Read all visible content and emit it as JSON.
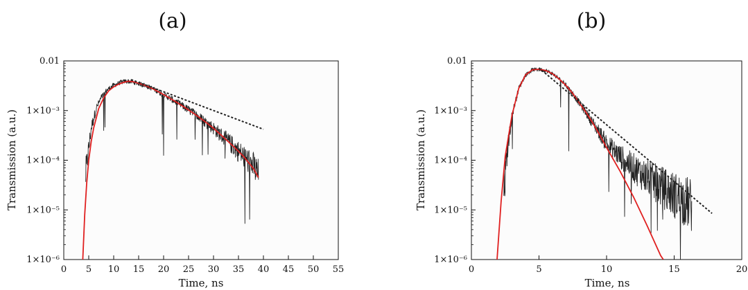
{
  "chart_data": [
    {
      "type": "line",
      "panel_label": "(a)",
      "xlabel": "Time, ns",
      "ylabel": "Transmission (a.u.)",
      "x_scale": "linear",
      "y_scale": "log",
      "xlim": [
        0,
        55
      ],
      "ylim": [
        1e-06,
        0.01
      ],
      "x_ticks": [
        0,
        5,
        10,
        15,
        20,
        25,
        30,
        35,
        40,
        45,
        50,
        55
      ],
      "x_tick_labels": [
        "0",
        "5",
        "10",
        "15",
        "20",
        "25",
        "30",
        "35",
        "40",
        "45",
        "50",
        "55"
      ],
      "y_ticks": [
        1e-06,
        1e-05,
        0.0001,
        0.001,
        0.01
      ],
      "y_tick_labels": [
        "1×10⁻⁶",
        "1×10⁻⁵",
        "1×10⁻⁴",
        "1×10⁻³",
        "0.01"
      ],
      "grid": false,
      "series": [
        {
          "kind": "measured",
          "color": "#222222",
          "style": "noisy",
          "x": [
            4.4,
            4.8,
            5.5,
            6.5,
            7.5,
            8.5,
            9.5,
            10.5,
            11.5,
            12.5,
            13.5,
            14.5,
            16,
            18,
            20,
            22,
            24,
            26,
            28,
            30,
            32,
            34,
            36,
            38,
            39
          ],
          "y": [
            5e-05,
            0.00012,
            0.00045,
            0.0011,
            0.0018,
            0.0025,
            0.003,
            0.0034,
            0.0037,
            0.0039,
            0.0038,
            0.0036,
            0.0033,
            0.0027,
            0.0021,
            0.0016,
            0.0012,
            0.00088,
            0.00063,
            0.00044,
            0.00029,
            0.00019,
            0.00012,
            7.5e-05,
            5e-05
          ]
        },
        {
          "kind": "fit",
          "color": "#e02020",
          "style": "solid",
          "x": [
            3.8,
            4.2,
            4.6,
            5,
            5.5,
            6,
            7,
            8,
            9,
            10,
            11,
            12,
            13,
            14,
            16,
            18,
            20,
            22,
            24,
            26,
            28,
            30,
            32,
            34,
            36,
            38,
            39
          ],
          "y": [
            1e-06,
            8e-06,
            3.5e-05,
            0.0001,
            0.00024,
            0.00045,
            0.0011,
            0.0018,
            0.0025,
            0.003,
            0.0034,
            0.0037,
            0.0039,
            0.0038,
            0.0033,
            0.0027,
            0.0021,
            0.0016,
            0.0012,
            0.00088,
            0.00063,
            0.00044,
            0.00029,
            0.00019,
            0.00012,
            6.8e-05,
            4.5e-05
          ]
        },
        {
          "kind": "exponential-tail",
          "color": "#222222",
          "style": "dashed",
          "x": [
            13.5,
            40
          ],
          "y": [
            0.0042,
            0.00042
          ]
        }
      ]
    },
    {
      "type": "line",
      "panel_label": "(b)",
      "xlabel": "Time, ns",
      "ylabel": "Transmission (a.u.)",
      "x_scale": "linear",
      "y_scale": "log",
      "xlim": [
        0,
        20
      ],
      "ylim": [
        1e-06,
        0.01
      ],
      "x_ticks": [
        0,
        5,
        10,
        15,
        20
      ],
      "x_tick_labels": [
        "0",
        "5",
        "10",
        "15",
        "20"
      ],
      "y_ticks": [
        1e-06,
        1e-05,
        0.0001,
        0.001,
        0.01
      ],
      "y_tick_labels": [
        "1×10⁻⁶",
        "1×10⁻⁵",
        "1×10⁻⁴",
        "1×10⁻³",
        "0.01"
      ],
      "grid": false,
      "series": [
        {
          "kind": "measured",
          "color": "#222222",
          "style": "noisy",
          "x": [
            2.4,
            2.7,
            3,
            3.5,
            4,
            4.5,
            5,
            5.5,
            6,
            6.5,
            7,
            7.5,
            8,
            8.5,
            9,
            9.5,
            10,
            11,
            12,
            13,
            14,
            15,
            16,
            16.3
          ],
          "y": [
            2e-05,
            0.0002,
            0.0008,
            0.0028,
            0.0052,
            0.0066,
            0.0068,
            0.0064,
            0.0055,
            0.0043,
            0.0032,
            0.0022,
            0.0014,
            0.0009,
            0.00055,
            0.00035,
            0.00022,
            0.00012,
            7e-05,
            4.5e-05,
            3e-05,
            2e-05,
            1.4e-05,
            1.2e-05
          ]
        },
        {
          "kind": "fit",
          "color": "#e02020",
          "style": "solid",
          "x": [
            1.9,
            2.2,
            2.5,
            3,
            3.5,
            4,
            4.5,
            5,
            5.5,
            6,
            6.5,
            7,
            7.5,
            8,
            8.5,
            9,
            9.5,
            10,
            11,
            12,
            13,
            14,
            14.2
          ],
          "y": [
            1e-06,
            1.5e-05,
            0.00012,
            0.0008,
            0.0028,
            0.0052,
            0.0066,
            0.0068,
            0.0064,
            0.0055,
            0.0043,
            0.0032,
            0.0022,
            0.0014,
            0.0009,
            0.00055,
            0.00032,
            0.00018,
            6e-05,
            1.8e-05,
            4.8e-06,
            1.2e-06,
            1e-06
          ]
        },
        {
          "kind": "exponential-tail",
          "color": "#222222",
          "style": "dashed",
          "x": [
            5,
            17.8
          ],
          "y": [
            0.0072,
            8.5e-06
          ]
        }
      ]
    }
  ]
}
